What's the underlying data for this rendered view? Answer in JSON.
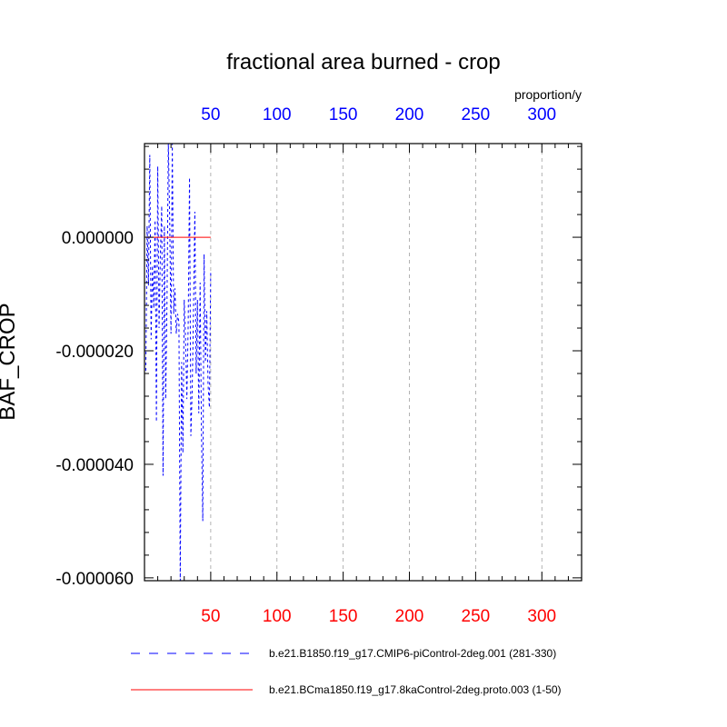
{
  "chart_data": {
    "type": "line",
    "title": "fractional area burned - crop",
    "units": "proportion/y",
    "ylabel": "BAF_CROP",
    "xlim": [
      0,
      330
    ],
    "ylim": [
      -6.05e-05,
      1.65e-05
    ],
    "x_ticks": [
      50,
      100,
      150,
      200,
      250,
      300
    ],
    "x_tick_labels_top": [
      "50",
      "100",
      "150",
      "200",
      "250",
      "300"
    ],
    "x_tick_labels_bottom": [
      "50",
      "100",
      "150",
      "200",
      "250",
      "300"
    ],
    "y_ticks": [
      0,
      -2e-05,
      -4e-05,
      -6e-05
    ],
    "y_tick_labels": [
      "0.000000",
      "-0.000020",
      "-0.000040",
      "-0.000060"
    ],
    "grid": "x-dashed",
    "legend_position": "bottom",
    "colors": {
      "series_1": "#0000ff",
      "series_2": "#ff0000",
      "top_axis": "#0000ff",
      "bottom_axis": "#ff0000"
    },
    "series": [
      {
        "name": "b.e21.B1850.f19_g17.CMIP6-piControl-2deg.001 (281-330)",
        "style": "dashed",
        "x": [
          1,
          2,
          3,
          4,
          5,
          6,
          7,
          8,
          9,
          10,
          11,
          12,
          13,
          14,
          15,
          16,
          17,
          18,
          19,
          20,
          21,
          22,
          23,
          24,
          25,
          26,
          27,
          28,
          29,
          30,
          31,
          32,
          33,
          34,
          35,
          36,
          37,
          38,
          39,
          40,
          41,
          42,
          43,
          44,
          45,
          46,
          47,
          48,
          49,
          50
        ],
        "y": [
          -2.35e-05,
          2e-06,
          -8.5e-06,
          1.45e-05,
          -1.8e-05,
          -5e-06,
          -1.25e-05,
          3e-06,
          -3.25e-05,
          1.25e-05,
          -1.6e-05,
          -3e-06,
          5.5e-06,
          -4.2e-05,
          2e-06,
          -2.85e-05,
          -1.1e-05,
          1.65e-05,
          3.5e-06,
          -1.7e-05,
          1.65e-05,
          -1.35e-05,
          -9e-06,
          -1.7e-05,
          -1.35e-05,
          -1.5e-05,
          -6.05e-05,
          -2.2e-05,
          -3.8e-05,
          -1.1e-05,
          -1.8e-05,
          -2.85e-05,
          -1.5e-05,
          1.05e-05,
          -3.5e-05,
          -2.7e-05,
          -1.3e-05,
          4.5e-06,
          -2.4e-05,
          -1.1e-05,
          -3.1e-05,
          -8e-06,
          -3.4e-05,
          -5e-05,
          -3e-06,
          -2.2e-05,
          -1.3e-05,
          -2.6e-05,
          -3e-05,
          -6e-06
        ]
      },
      {
        "name": "b.e21.BCma1850.f19_g17.8kaControl-2deg.proto.003 (1-50)",
        "style": "solid",
        "x": [
          1,
          50
        ],
        "y": [
          0,
          0
        ]
      }
    ]
  }
}
